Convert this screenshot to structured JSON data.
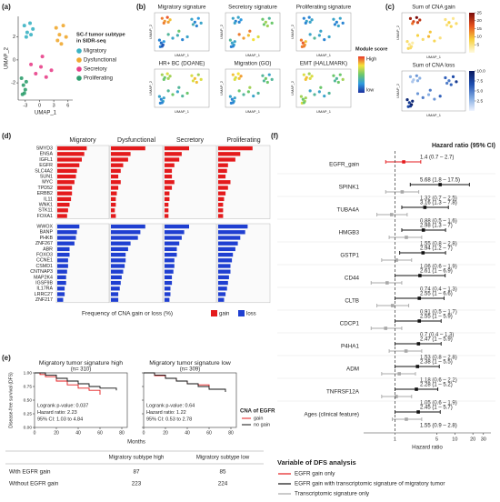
{
  "panel_labels": [
    "(a)",
    "(b)",
    "(c)",
    "(d)",
    "(e)",
    "(f)"
  ],
  "chart_data": [
    {
      "type": "scatter",
      "xlabel": "UMAP_1",
      "ylabel": "UMAP_2",
      "xlim": [
        -4.5,
        7
      ],
      "ylim": [
        -3.5,
        3.8
      ],
      "xticks": [
        -3,
        0,
        3,
        6
      ],
      "yticks": [
        -2,
        0,
        2
      ],
      "legend_title": [
        "SC-f tumor subtype",
        "in SIDR-seq"
      ],
      "series": [
        {
          "name": "Migratory",
          "color": "#3bb3c3",
          "x": [
            -3.2,
            -2.6,
            -2.0,
            -1.4,
            -2.8,
            -1.8
          ],
          "values": [
            3.0,
            2.4,
            3.2,
            2.7,
            2.0,
            2.2
          ]
        },
        {
          "name": "Dysfunctional",
          "color": "#f0a830",
          "x": [
            3.5,
            4.2,
            5.0,
            5.6,
            4.6,
            3.8
          ],
          "values": [
            2.8,
            2.2,
            3.0,
            2.0,
            1.4,
            1.7
          ]
        },
        {
          "name": "Secretory",
          "color": "#e8408a",
          "x": [
            -1.8,
            -0.8,
            0.3,
            1.4,
            2.5,
            0.6
          ],
          "values": [
            -0.4,
            -1.2,
            -0.6,
            -1.5,
            -0.9,
            0.3
          ]
        },
        {
          "name": "Proliferating",
          "color": "#2f9e6e",
          "x": [
            -3.8,
            -3.4,
            -3.0,
            -3.6,
            -2.8,
            -3.2
          ],
          "values": [
            -1.6,
            -2.2,
            -2.6,
            -3.0,
            -1.9,
            -2.9
          ]
        }
      ]
    },
    {
      "type": "umap-grid",
      "xlabel": "UMAP_1",
      "ylabel": "UMAP_2",
      "colorbar_title": "Module score",
      "colorbar_labels": [
        "High",
        "low"
      ],
      "colors": [
        "#1a2f9e",
        "#2f9be0",
        "#6cc86c",
        "#f5e23a",
        "#e8382a"
      ],
      "lim": [
        0,
        1
      ],
      "panels": [
        {
          "title": "Migratory signature",
          "values": [
            0.9,
            0.85,
            0.95,
            0.8,
            0.9,
            0.85,
            0.3,
            0.2,
            0.25,
            0.3,
            0.2,
            0.35,
            0.4,
            0.3,
            0.35,
            0.2,
            0.3,
            0.5,
            0.2,
            0.15,
            0.1,
            0.2,
            0.25,
            0.1
          ]
        },
        {
          "title": "Secretory signature",
          "values": [
            0.3,
            0.2,
            0.3,
            0.25,
            0.3,
            0.2,
            0.5,
            0.6,
            0.4,
            0.5,
            0.6,
            0.5,
            0.9,
            0.85,
            0.8,
            0.75,
            0.7,
            0.9,
            0.4,
            0.3,
            0.3,
            0.2,
            0.3,
            0.2
          ]
        },
        {
          "title": "Proliferating signature",
          "values": [
            0.2,
            0.3,
            0.2,
            0.3,
            0.2,
            0.3,
            0.3,
            0.2,
            0.3,
            0.2,
            0.3,
            0.2,
            0.3,
            0.4,
            0.3,
            0.2,
            0.3,
            0.3,
            0.9,
            0.95,
            0.85,
            0.9,
            0.8,
            0.9
          ]
        },
        {
          "title": "HR+ BC (DOANE)",
          "values": [
            0.6,
            0.5,
            0.7,
            0.6,
            0.5,
            0.6,
            0.7,
            0.8,
            0.6,
            0.7,
            0.8,
            0.7,
            0.4,
            0.5,
            0.3,
            0.4,
            0.5,
            0.4,
            0.3,
            0.2,
            0.3,
            0.2,
            0.3,
            0.2
          ]
        },
        {
          "title": "Migration (GO)",
          "values": [
            0.8,
            0.7,
            0.75,
            0.85,
            0.7,
            0.8,
            0.4,
            0.5,
            0.3,
            0.4,
            0.5,
            0.4,
            0.5,
            0.4,
            0.5,
            0.3,
            0.4,
            0.6,
            0.3,
            0.2,
            0.3,
            0.2,
            0.3,
            0.2
          ]
        },
        {
          "title": "EMT (HALLMARK)",
          "values": [
            0.7,
            0.8,
            0.6,
            0.7,
            0.8,
            0.7,
            0.5,
            0.4,
            0.5,
            0.6,
            0.5,
            0.4,
            0.3,
            0.4,
            0.3,
            0.3,
            0.4,
            0.5,
            0.6,
            0.5,
            0.6,
            0.7,
            0.6,
            0.5
          ]
        }
      ]
    },
    {
      "type": "umap-grid",
      "xlabel": "UMAP_1",
      "ylabel": "UMAP_2",
      "panels": [
        {
          "title": "Sum of CNA gain",
          "colors": [
            "#fffbe0",
            "#f7d03c",
            "#e8541e",
            "#7a0a0a"
          ],
          "lim": [
            0,
            25
          ],
          "ticks": [
            5,
            10,
            15,
            20,
            25
          ],
          "values": [
            22,
            18,
            25,
            20,
            15,
            19,
            5,
            8,
            4,
            6,
            7,
            5,
            8,
            6,
            10,
            7,
            5,
            9,
            6,
            4,
            5,
            7,
            3,
            6
          ]
        },
        {
          "title": "Sum of CNA loss",
          "colors": [
            "#f0f4ff",
            "#7fa8e0",
            "#1f4fb0",
            "#0a1a60"
          ],
          "lim": [
            0,
            10
          ],
          "ticks": [
            2.5,
            {
              "value": 5,
              "label": "5.0"
            },
            7.5,
            {
              "value": 10,
              "label": "10.0"
            }
          ],
          "values": [
            3,
            2,
            4,
            3,
            2,
            3,
            6,
            5,
            7,
            8,
            6,
            5,
            4,
            5,
            3,
            4,
            6,
            5,
            9,
            8,
            10,
            7,
            9,
            8
          ]
        }
      ]
    },
    {
      "type": "bar-grid",
      "subtypes": [
        "Migratory",
        "Dysfunctional",
        "Secretory",
        "Proliferating"
      ],
      "xlabel": "Frequency of CNA gain or loss (%)",
      "xlim": [
        0,
        100
      ],
      "series": [
        {
          "name": "gain",
          "color": "#e41a1c",
          "genes": [
            "SMYD3",
            "ENSA",
            "IGFL1",
            "EGFR",
            "SLC4A2",
            "SUN1",
            "MYC",
            "TPD52",
            "ERBB2",
            "IL11",
            "WNK1",
            "STK11",
            "FOXA1"
          ],
          "highlight": [
            3,
            4,
            5
          ],
          "values": [
            [
              60,
              55,
              50,
              45,
              40,
              38,
              35,
              30,
              30,
              28,
              25,
              22,
              20
            ],
            [
              70,
              40,
              35,
              25,
              20,
              15,
              20,
              15,
              12,
              10,
              10,
              8,
              10
            ],
            [
              50,
              35,
              30,
              20,
              15,
              15,
              20,
              15,
              10,
              10,
              8,
              8,
              8
            ],
            [
              70,
              45,
              35,
              20,
              18,
              15,
              25,
              20,
              15,
              12,
              10,
              10,
              10
            ]
          ]
        },
        {
          "name": "loss",
          "color": "#1f3fd1",
          "genes": [
            "WWOX",
            "BANP",
            "PHKB",
            "ZNF267",
            "ABR",
            "FOXO3",
            "CCNE1",
            "CSMD1",
            "CNTNAP3",
            "MAP2K4",
            "IGSF9B",
            "IL17RA",
            "LRRC27",
            "ZNF217"
          ],
          "highlight": [
            0,
            1,
            2,
            3
          ],
          "values": [
            [
              45,
              40,
              38,
              35,
              25,
              25,
              22,
              22,
              20,
              18,
              18,
              15,
              15,
              12
            ],
            [
              70,
              60,
              55,
              40,
              35,
              30,
              30,
              28,
              25,
              22,
              20,
              18,
              15,
              15
            ],
            [
              50,
              40,
              35,
              30,
              25,
              25,
              20,
              20,
              18,
              15,
              15,
              12,
              12,
              10
            ],
            [
              60,
              55,
              45,
              40,
              35,
              30,
              28,
              25,
              25,
              22,
              20,
              18,
              15,
              12
            ]
          ]
        }
      ]
    },
    {
      "type": "km",
      "ylabel": "Disease-free survival (DFS)",
      "xlabel": "Months",
      "xlim": [
        0,
        85
      ],
      "xticks": [
        0,
        20,
        40,
        60,
        80
      ],
      "ylim": [
        0,
        1
      ],
      "yticks": [
        {
          "value": 0,
          "label": "0.00"
        },
        {
          "value": 0.25,
          "label": "0.25"
        },
        {
          "value": 0.5,
          "label": "0.50"
        },
        {
          "value": 0.75,
          "label": "0.75"
        },
        {
          "value": 1,
          "label": "1.00"
        }
      ],
      "legend_title": "CNA of EGFR",
      "legend": [
        {
          "name": "gain",
          "color": "#e41a1c"
        },
        {
          "name": "no gain",
          "color": "#111111"
        }
      ],
      "plots": [
        {
          "title": "Migratory tumor signature high",
          "subtitle": "(n= 310)",
          "annotations": [
            "Logrank p-value: 0.037",
            "Hazard ratio: 2.23",
            "95% CI: 1.03 to 4.84"
          ],
          "curves": [
            {
              "x": [
                0,
                5,
                10,
                20,
                30,
                40,
                50,
                60
              ],
              "values": [
                1,
                0.97,
                0.93,
                0.85,
                0.78,
                0.72,
                0.68,
                0.6
              ]
            },
            {
              "x": [
                0,
                10,
                20,
                30,
                40,
                50,
                60,
                75
              ],
              "values": [
                1,
                0.96,
                0.9,
                0.85,
                0.8,
                0.75,
                0.72,
                0.68
              ]
            }
          ]
        },
        {
          "title": "Migratory tumor signature low",
          "subtitle": "(n= 309)",
          "annotations": [
            "Logrank p-value: 0.64",
            "Hazard ratio: 1.22",
            "95% CI: 0.53 to 2.78"
          ],
          "curves": [
            {
              "x": [
                0,
                10,
                20,
                30,
                40,
                50,
                60
              ],
              "values": [
                1,
                0.95,
                0.9,
                0.85,
                0.8,
                0.78,
                0.75
              ]
            },
            {
              "x": [
                0,
                10,
                20,
                30,
                40,
                50,
                60,
                75
              ],
              "values": [
                1,
                0.96,
                0.9,
                0.85,
                0.8,
                0.75,
                0.7,
                0.65
              ]
            }
          ]
        }
      ]
    },
    {
      "type": "forest",
      "header": "Hazard ratio (95% CI)",
      "xlabel": "Hazard ratio",
      "log_x": true,
      "xlim": [
        0.3,
        40
      ],
      "xticks": [
        1,
        5,
        10,
        20,
        30
      ],
      "reference": 1,
      "legend_title": "Variable of DFS analysis",
      "legend": [
        {
          "name": "EGFR gain only",
          "color": "#e41a1c"
        },
        {
          "name": "EGFR gain with transcriptomic signature of migratory tumor",
          "color": "#111111"
        },
        {
          "name": "Transcriptomic signature only",
          "color": "#a8a8a8"
        }
      ],
      "rows": [
        {
          "name": "EGFR_gain",
          "series": [
            0
          ],
          "estimates": [
            [
              1.4,
              0.7,
              2.7
            ]
          ],
          "labels": [
            "1.4 (0.7 – 2.7)"
          ]
        },
        {
          "name": "SPINK1",
          "series": [
            1,
            2
          ],
          "estimates": [
            [
              5.68,
              1.8,
              17.5
            ],
            [
              1.32,
              0.7,
              2.5
            ]
          ],
          "labels": [
            "5.68 (1.8 – 17.5)",
            "1.32 (0.7 – 2.5)"
          ]
        },
        {
          "name": "TUBA4A",
          "series": [
            1,
            2
          ],
          "estimates": [
            [
              3.16,
              1.3,
              7.8
            ],
            [
              0.88,
              0.5,
              1.6
            ]
          ],
          "labels": [
            "3.16 (1.3 – 7.8)",
            "0.88 (0.5 – 1.6)"
          ]
        },
        {
          "name": "HMGB3",
          "series": [
            1,
            2
          ],
          "estimates": [
            [
              2.98,
              1.3,
              7
            ],
            [
              1.55,
              0.8,
              2.8
            ]
          ],
          "labels": [
            "2.98 (1.3 – 7)",
            "1.55 (0.8 – 2.8)"
          ]
        },
        {
          "name": "GSTP1",
          "series": [
            1,
            2
          ],
          "estimates": [
            [
              2.94,
              1.2,
              7
            ],
            [
              1.06,
              0.6,
              1.9
            ]
          ],
          "labels": [
            "2.94 (1.2 – 7)",
            "1.06 (0.6 – 1.9)"
          ]
        },
        {
          "name": "CD44",
          "series": [
            1,
            2
          ],
          "estimates": [
            [
              2.61,
              1,
              6.9
            ],
            [
              0.74,
              0.4,
              1.3
            ]
          ],
          "labels": [
            "2.61 (1 – 6.9)",
            "0.74 (0.4 – 1.3)"
          ]
        },
        {
          "name": "CLTB",
          "series": [
            1,
            2
          ],
          "estimates": [
            [
              2.55,
              1,
              6.6
            ],
            [
              0.91,
              0.5,
              1.7
            ]
          ],
          "labels": [
            "2.55 (1 – 6.6)",
            "0.91 (0.5 – 1.7)"
          ]
        },
        {
          "name": "CDCP1",
          "series": [
            1,
            2
          ],
          "estimates": [
            [
              2.55,
              1,
              5.9
            ],
            [
              0.7,
              0.4,
              1.3
            ]
          ],
          "labels": [
            "2.55 (1 – 5.9)",
            "0.7 (0.4 – 1.3)"
          ]
        },
        {
          "name": "P4HA1",
          "series": [
            1,
            2
          ],
          "estimates": [
            [
              2.47,
              1,
              5.9
            ],
            [
              1.53,
              0.8,
              2.8
            ]
          ],
          "labels": [
            "2.47 (1 – 5.9)",
            "1.53 (0.8 – 2.8)"
          ]
        },
        {
          "name": "ADM",
          "series": [
            1,
            2
          ],
          "estimates": [
            [
              2.38,
              1,
              5.5
            ],
            [
              1.18,
              0.6,
              2.2
            ]
          ],
          "labels": [
            "2.38 (1 – 5.5)",
            "1.18 (0.6 – 2.2)"
          ]
        },
        {
          "name": "TNFRSF12A",
          "series": [
            1,
            2
          ],
          "estimates": [
            [
              2.28,
              1,
              5.2
            ],
            [
              1.05,
              0.6,
              1.9
            ]
          ],
          "labels": [
            "2.28 (1 – 5.2)",
            "1.05 (0.6 – 1.9)"
          ]
        },
        {
          "name": "Ages (clinical feature)",
          "series": [
            1,
            2
          ],
          "estimates": [
            [
              2.45,
              1,
              5.7
            ],
            [
              1.55,
              0.9,
              2.8
            ]
          ],
          "labels": [
            "2.45 (1 – 5.7)",
            "1.55 (0.9 – 2.8)"
          ]
        }
      ]
    }
  ],
  "table": {
    "columns": [
      "Migratory subtype high",
      "Migratory subtype low"
    ],
    "rows": [
      {
        "label": "With EGFR gain",
        "values": [
          87,
          85
        ],
        "colors": [
          "#e41a1c",
          "#222222"
        ]
      },
      {
        "label": "Without EGFR gain",
        "values": [
          223,
          224
        ],
        "colors": [
          "#222222",
          "#222222"
        ]
      }
    ]
  }
}
